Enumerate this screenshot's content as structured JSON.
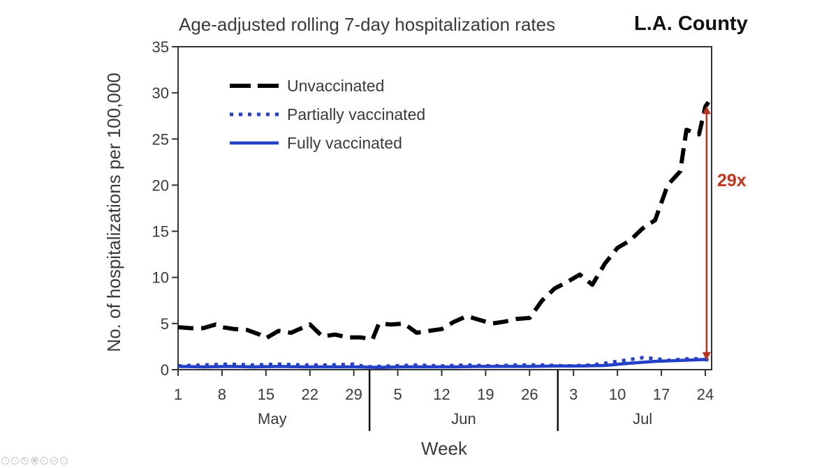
{
  "slide": {
    "title": "Age-adjusted rolling 7-day hospitalization rates",
    "region": "L.A. County",
    "ratio_annotation": "29x",
    "nav_controls": [
      {
        "icon": "previous-icon",
        "glyph": "‹"
      },
      {
        "icon": "next-icon",
        "glyph": "›"
      },
      {
        "icon": "pen-icon",
        "glyph": "✎"
      },
      {
        "icon": "slides-icon",
        "glyph": "▦"
      },
      {
        "icon": "zoom-icon",
        "glyph": "⌕"
      },
      {
        "icon": "subtitles-icon",
        "glyph": "▭"
      },
      {
        "icon": "more-icon",
        "glyph": "…"
      }
    ]
  },
  "chart_data": {
    "type": "line",
    "title": "Age-adjusted rolling 7-day hospitalization rates",
    "xlabel": "Week",
    "ylabel": "No. of hospitalizations per 100,000",
    "x_unit": "day of year 2021 (May 1 = 1)",
    "xlim": [
      1,
      85.5
    ],
    "ylim": [
      0,
      35
    ],
    "yticks": [
      0,
      5,
      10,
      15,
      20,
      25,
      30,
      35
    ],
    "xticks": [
      {
        "x": 1,
        "label": "1"
      },
      {
        "x": 8,
        "label": "8"
      },
      {
        "x": 15,
        "label": "15"
      },
      {
        "x": 22,
        "label": "22"
      },
      {
        "x": 29,
        "label": "29"
      },
      {
        "x": 36,
        "label": "5"
      },
      {
        "x": 43,
        "label": "12"
      },
      {
        "x": 50,
        "label": "19"
      },
      {
        "x": 57,
        "label": "26"
      },
      {
        "x": 64,
        "label": "3"
      },
      {
        "x": 71,
        "label": "10"
      },
      {
        "x": 78,
        "label": "17"
      },
      {
        "x": 85,
        "label": "24"
      }
    ],
    "months": [
      {
        "label": "May",
        "center": 16
      },
      {
        "label": "Jun",
        "center": 46.5
      },
      {
        "label": "Jul",
        "center": 75
      }
    ],
    "month_separators": [
      31.5,
      61.5
    ],
    "legend_position": "top-left",
    "series": [
      {
        "name": "Unvaccinated",
        "color": "#000000",
        "style": "dashed",
        "x": [
          1,
          3,
          5,
          7,
          8,
          10,
          12,
          14,
          15,
          17,
          19,
          21,
          22,
          24,
          26,
          28,
          30,
          32,
          33,
          35,
          37,
          39,
          41,
          43,
          45,
          47,
          49,
          51,
          53,
          55,
          57,
          59,
          61,
          63,
          65,
          67,
          69,
          71,
          73,
          75,
          77,
          79,
          81,
          82,
          84,
          85,
          85.5
        ],
        "y": [
          4.6,
          4.5,
          4.5,
          4.9,
          4.6,
          4.4,
          4.3,
          3.8,
          3.4,
          4.2,
          4.0,
          4.6,
          4.9,
          3.6,
          3.8,
          3.5,
          3.5,
          3.3,
          5.0,
          4.9,
          5.0,
          4.0,
          4.2,
          4.4,
          5.2,
          5.8,
          5.4,
          5.0,
          5.2,
          5.5,
          5.6,
          7.5,
          8.8,
          9.5,
          10.3,
          9.2,
          11.5,
          13.2,
          14.0,
          15.3,
          16.2,
          20.0,
          21.5,
          26.0,
          25.5,
          28.5,
          29.0
        ]
      },
      {
        "name": "Partially vaccinated",
        "color": "#2340c8",
        "style": "dotted",
        "x": [
          1,
          5,
          9,
          13,
          17,
          21,
          25,
          29,
          31,
          35,
          39,
          43,
          47,
          51,
          55,
          59,
          63,
          67,
          71,
          75,
          77,
          79,
          81,
          83,
          85,
          85.5
        ],
        "y": [
          0.4,
          0.5,
          0.6,
          0.5,
          0.6,
          0.5,
          0.5,
          0.6,
          0.3,
          0.4,
          0.5,
          0.4,
          0.5,
          0.4,
          0.5,
          0.5,
          0.4,
          0.5,
          0.9,
          1.3,
          1.2,
          1.0,
          1.1,
          1.2,
          1.1,
          1.0
        ]
      },
      {
        "name": "Fully vaccinated",
        "color": "#2340c8",
        "style": "solid",
        "x": [
          1,
          5,
          9,
          13,
          17,
          21,
          25,
          29,
          33,
          37,
          41,
          45,
          49,
          53,
          57,
          61,
          65,
          69,
          73,
          77,
          81,
          85,
          85.5
        ],
        "y": [
          0.35,
          0.3,
          0.35,
          0.3,
          0.35,
          0.3,
          0.3,
          0.3,
          0.25,
          0.3,
          0.3,
          0.3,
          0.35,
          0.35,
          0.35,
          0.4,
          0.4,
          0.45,
          0.7,
          0.9,
          1.0,
          1.1,
          1.05
        ]
      }
    ],
    "annotations": [
      {
        "text": "29x",
        "type": "arrow",
        "x": 85.2,
        "y_from": 1.0,
        "y_to": 28.6,
        "color": "#b53520"
      }
    ]
  }
}
